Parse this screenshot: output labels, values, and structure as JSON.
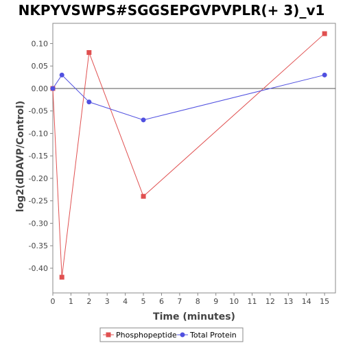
{
  "chart_data": {
    "type": "line",
    "title": "NKPYVSWPS#SGGSEPGVPVPLR(+ 3)_v1",
    "xlabel": "Time (minutes)",
    "ylabel": "log2(dDAVP/Control)",
    "xlim": [
      0,
      15.6
    ],
    "ylim": [
      -0.455,
      0.145
    ],
    "xticks": [
      0,
      1,
      2,
      3,
      4,
      5,
      6,
      7,
      8,
      9,
      10,
      11,
      12,
      13,
      14,
      15
    ],
    "yticks": [
      0.1,
      0.05,
      0.0,
      -0.05,
      -0.1,
      -0.15,
      -0.2,
      -0.25,
      -0.3,
      -0.35,
      -0.4
    ],
    "ytick_labels": [
      "0.10",
      "0.05",
      "0.00",
      "-0.05",
      "-0.10",
      "-0.15",
      "-0.20",
      "-0.25",
      "-0.30",
      "-0.35",
      "-0.40"
    ],
    "zero_line": true,
    "grid": false,
    "legend_position": "bottom",
    "series": [
      {
        "name": "Phosphopeptide",
        "color": "#e05050",
        "marker": "square",
        "x": [
          0,
          0.5,
          2,
          5,
          15
        ],
        "y": [
          0.0,
          -0.42,
          0.08,
          -0.24,
          0.122
        ]
      },
      {
        "name": "Total Protein",
        "color": "#5050e0",
        "marker": "circle",
        "x": [
          0,
          0.5,
          2,
          5,
          15
        ],
        "y": [
          0.0,
          0.03,
          -0.03,
          -0.07,
          0.03
        ]
      }
    ]
  }
}
